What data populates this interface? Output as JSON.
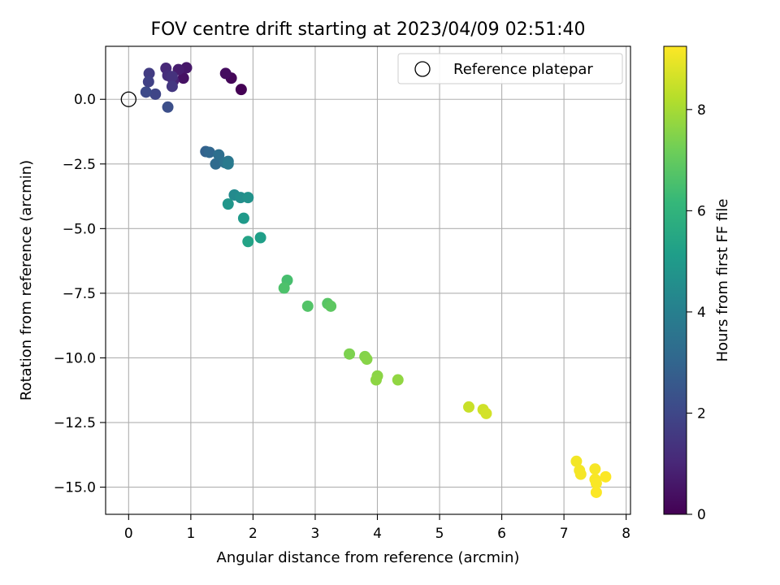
{
  "chart_data": {
    "type": "scatter",
    "title": "FOV centre drift starting at 2023/04/09 02:51:40",
    "xlabel": "Angular distance from reference (arcmin)",
    "ylabel": "Rotation from reference (arcmin)",
    "xlim": [
      -0.37,
      8.07
    ],
    "ylim": [
      -16.05,
      2.05
    ],
    "xticks": [
      0,
      1,
      2,
      3,
      4,
      5,
      6,
      7,
      8
    ],
    "xtick_labels": [
      "0",
      "1",
      "2",
      "3",
      "4",
      "5",
      "6",
      "7",
      "8"
    ],
    "yticks": [
      0,
      -2.5,
      -5,
      -7.5,
      -10,
      -12.5,
      -15
    ],
    "ytick_labels": [
      "0.0",
      "−2.5",
      "−5.0",
      "−7.5",
      "−10.0",
      "−12.5",
      "−15.0"
    ],
    "grid": true,
    "legend": {
      "position": "top-right",
      "label": "Reference platepar"
    },
    "reference_point": {
      "x": 0,
      "y": 0
    },
    "colorbar": {
      "label": "Hours from first FF file",
      "range": [
        0,
        9.25
      ],
      "ticks": [
        0,
        2,
        4,
        6,
        8
      ],
      "tick_labels": [
        "0",
        "2",
        "4",
        "6",
        "8"
      ],
      "colormap": [
        "#440154",
        "#482878",
        "#3e4989",
        "#31688e",
        "#26828e",
        "#1f9e89",
        "#35b779",
        "#6ece58",
        "#b5de2b",
        "#fde725"
      ]
    },
    "points": [
      {
        "x": 1.81,
        "y": 0.38,
        "hours": 0.0
      },
      {
        "x": 1.65,
        "y": 0.82,
        "hours": 0.15
      },
      {
        "x": 1.56,
        "y": 1.0,
        "hours": 0.3
      },
      {
        "x": 0.88,
        "y": 0.82,
        "hours": 0.45
      },
      {
        "x": 0.93,
        "y": 1.22,
        "hours": 0.6
      },
      {
        "x": 0.8,
        "y": 1.15,
        "hours": 0.75
      },
      {
        "x": 0.72,
        "y": 0.72,
        "hours": 0.9
      },
      {
        "x": 0.6,
        "y": 1.2,
        "hours": 1.05
      },
      {
        "x": 0.63,
        "y": 0.92,
        "hours": 1.2
      },
      {
        "x": 0.7,
        "y": 0.88,
        "hours": 1.35
      },
      {
        "x": 0.7,
        "y": 0.5,
        "hours": 1.5
      },
      {
        "x": 0.33,
        "y": 1.0,
        "hours": 1.65
      },
      {
        "x": 0.32,
        "y": 0.68,
        "hours": 1.8
      },
      {
        "x": 0.43,
        "y": 0.2,
        "hours": 1.95
      },
      {
        "x": 0.28,
        "y": 0.28,
        "hours": 2.1
      },
      {
        "x": 0.63,
        "y": -0.3,
        "hours": 2.25
      },
      {
        "x": 1.24,
        "y": -2.02,
        "hours": 2.9
      },
      {
        "x": 1.3,
        "y": -2.05,
        "hours": 3.05
      },
      {
        "x": 1.4,
        "y": -2.5,
        "hours": 3.2
      },
      {
        "x": 1.45,
        "y": -2.15,
        "hours": 3.35
      },
      {
        "x": 1.55,
        "y": -2.45,
        "hours": 3.5
      },
      {
        "x": 1.6,
        "y": -2.4,
        "hours": 3.65
      },
      {
        "x": 1.6,
        "y": -2.5,
        "hours": 3.8
      },
      {
        "x": 1.7,
        "y": -3.7,
        "hours": 4.4
      },
      {
        "x": 1.8,
        "y": -3.8,
        "hours": 4.55
      },
      {
        "x": 1.92,
        "y": -3.8,
        "hours": 4.7
      },
      {
        "x": 1.6,
        "y": -4.05,
        "hours": 4.85
      },
      {
        "x": 1.85,
        "y": -4.6,
        "hours": 5.0
      },
      {
        "x": 2.12,
        "y": -5.35,
        "hours": 5.2
      },
      {
        "x": 1.92,
        "y": -5.5,
        "hours": 5.35
      },
      {
        "x": 2.55,
        "y": -7.0,
        "hours": 6.5
      },
      {
        "x": 2.5,
        "y": -7.3,
        "hours": 6.6
      },
      {
        "x": 2.88,
        "y": -8.0,
        "hours": 6.7
      },
      {
        "x": 3.2,
        "y": -7.9,
        "hours": 6.8
      },
      {
        "x": 3.25,
        "y": -8.0,
        "hours": 6.9
      },
      {
        "x": 3.55,
        "y": -9.85,
        "hours": 7.4
      },
      {
        "x": 3.8,
        "y": -9.95,
        "hours": 7.5
      },
      {
        "x": 3.83,
        "y": -10.05,
        "hours": 7.55
      },
      {
        "x": 4.0,
        "y": -10.7,
        "hours": 7.6
      },
      {
        "x": 3.98,
        "y": -10.85,
        "hours": 7.65
      },
      {
        "x": 4.33,
        "y": -10.85,
        "hours": 7.7
      },
      {
        "x": 5.47,
        "y": -11.9,
        "hours": 8.5
      },
      {
        "x": 5.7,
        "y": -12.0,
        "hours": 8.6
      },
      {
        "x": 5.75,
        "y": -12.15,
        "hours": 8.65
      },
      {
        "x": 7.2,
        "y": -14.0,
        "hours": 9.1
      },
      {
        "x": 7.25,
        "y": -14.35,
        "hours": 9.12
      },
      {
        "x": 7.27,
        "y": -14.5,
        "hours": 9.14
      },
      {
        "x": 7.5,
        "y": -14.3,
        "hours": 9.16
      },
      {
        "x": 7.5,
        "y": -14.7,
        "hours": 9.18
      },
      {
        "x": 7.52,
        "y": -14.85,
        "hours": 9.2
      },
      {
        "x": 7.52,
        "y": -15.2,
        "hours": 9.22
      },
      {
        "x": 7.67,
        "y": -14.6,
        "hours": 9.24
      }
    ]
  }
}
